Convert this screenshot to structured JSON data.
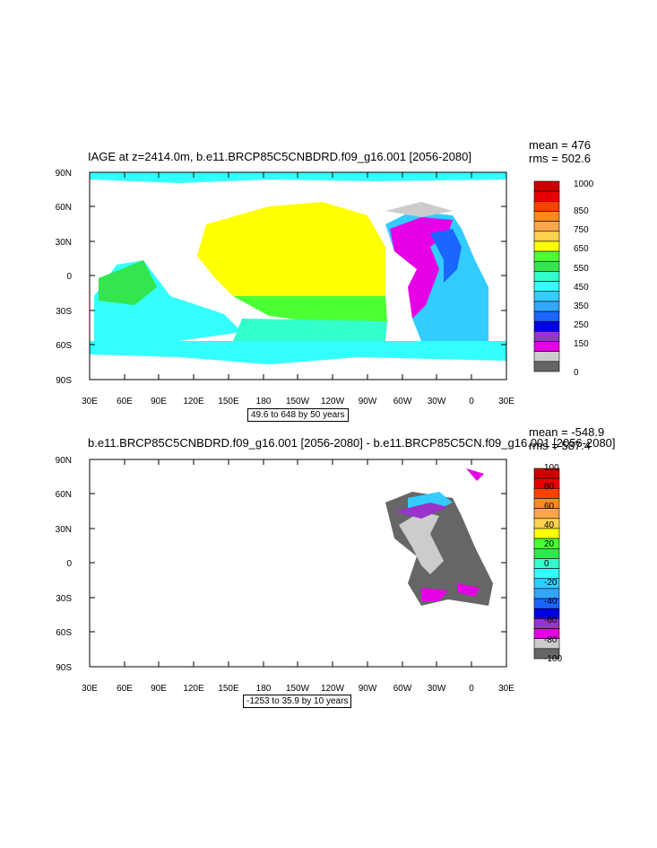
{
  "panels": [
    {
      "title": "IAGE at z=2414.0m, b.e11.BRCP85C5CNBDRD.f09_g16.001 [2056-2080]",
      "mean": "mean = 476",
      "rms": "rms = 502.6",
      "subtitle": "49.6 to 648 by 50 years",
      "lat_labels": [
        "90N",
        "60N",
        "30N",
        "0",
        "30S",
        "60S",
        "90S"
      ],
      "lon_labels": [
        "30E",
        "60E",
        "90E",
        "120E",
        "150E",
        "180",
        "150W",
        "120W",
        "90W",
        "60W",
        "30W",
        "0",
        "30E"
      ],
      "colorbar": {
        "labels": [
          "1000",
          "850",
          "750",
          "650",
          "550",
          "450",
          "350",
          "250",
          "150",
          "0"
        ],
        "colors": [
          "#cc0000",
          "#e60000",
          "#ff4000",
          "#ff8c1a",
          "#ffa64d",
          "#ffd24d",
          "#ffff00",
          "#4cff33",
          "#33e64d",
          "#33ffcc",
          "#33ffff",
          "#33ccff",
          "#33a6ff",
          "#1a66ff",
          "#0000e6",
          "#9933cc",
          "#e600e6",
          "#cccccc",
          "#666666"
        ]
      }
    },
    {
      "title": "b.e11.BRCP85C5CNBDRD.f09_g16.001 [2056-2080] - b.e11.BRCP85C5CN.f09_g16.001 [2056-2080]",
      "mean": "mean = -548.9",
      "rms": "rms = 587.4",
      "subtitle": "-1253 to 35.9 by 10 years",
      "lat_labels": [
        "90N",
        "60N",
        "30N",
        "0",
        "30S",
        "60S",
        "90S"
      ],
      "lon_labels": [
        "30E",
        "60E",
        "90E",
        "120E",
        "150E",
        "180",
        "150W",
        "120W",
        "90W",
        "60W",
        "30W",
        "0",
        "30E"
      ],
      "colorbar": {
        "labels": [
          "100",
          "80",
          "60",
          "40",
          "20",
          "0",
          "-20",
          "-40",
          "-60",
          "-80",
          "-100"
        ],
        "colors": [
          "#cc0000",
          "#e60000",
          "#ff4000",
          "#ff8c1a",
          "#ffa64d",
          "#ffd24d",
          "#ffff00",
          "#4cff33",
          "#33e64d",
          "#33ffcc",
          "#33ffff",
          "#33ccff",
          "#33a6ff",
          "#1a66ff",
          "#0000e6",
          "#9933cc",
          "#e600e6",
          "#cccccc",
          "#666666"
        ]
      }
    }
  ]
}
